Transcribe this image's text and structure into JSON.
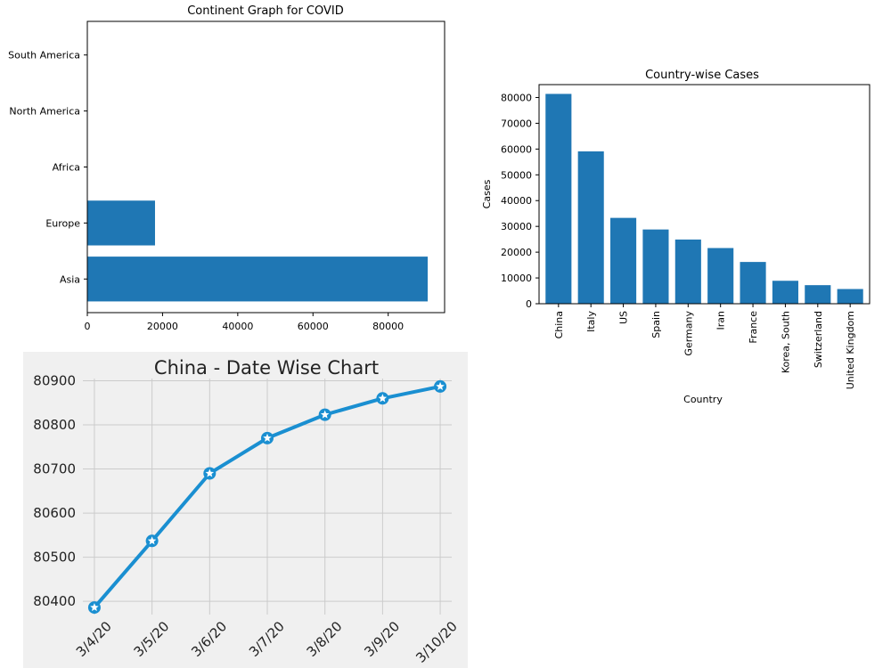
{
  "colors": {
    "bar": "#1f77b4",
    "line": "#1a8fd1",
    "panel_bg": "#f0f0f0",
    "grid": "#cbcbcb"
  },
  "chart_data": [
    {
      "type": "bar",
      "orientation": "horizontal",
      "title": "Continent Graph for COVID",
      "categories": [
        "Asia",
        "Europe",
        "Africa",
        "North America",
        "South America"
      ],
      "values": [
        90500,
        18000,
        0,
        0,
        0
      ],
      "xlim": [
        0,
        95000
      ],
      "xticks": [
        0,
        20000,
        40000,
        60000,
        80000
      ],
      "grid": false
    },
    {
      "type": "bar",
      "title": "Country-wise Cases",
      "xlabel": "Country",
      "ylabel": "Cases",
      "categories": [
        "China",
        "Italy",
        "US",
        "Spain",
        "Germany",
        "Iran",
        "France",
        "Korea, South",
        "Switzerland",
        "United Kingdom"
      ],
      "values": [
        81400,
        59100,
        33300,
        28800,
        24900,
        21600,
        16200,
        8900,
        7200,
        5700
      ],
      "ylim": [
        0,
        85000
      ],
      "yticks": [
        0,
        10000,
        20000,
        30000,
        40000,
        50000,
        60000,
        70000,
        80000
      ],
      "grid": false
    },
    {
      "type": "line",
      "title": "China - Date Wise Chart",
      "categories": [
        "3/4/20",
        "3/5/20",
        "3/6/20",
        "3/7/20",
        "3/8/20",
        "3/9/20",
        "3/10/20"
      ],
      "values": [
        80386,
        80537,
        80690,
        80770,
        80823,
        80860,
        80887
      ],
      "ylim": [
        80370,
        80905
      ],
      "yticks": [
        80400,
        80500,
        80600,
        80700,
        80800,
        80900
      ],
      "grid": true,
      "marker": "star"
    }
  ]
}
